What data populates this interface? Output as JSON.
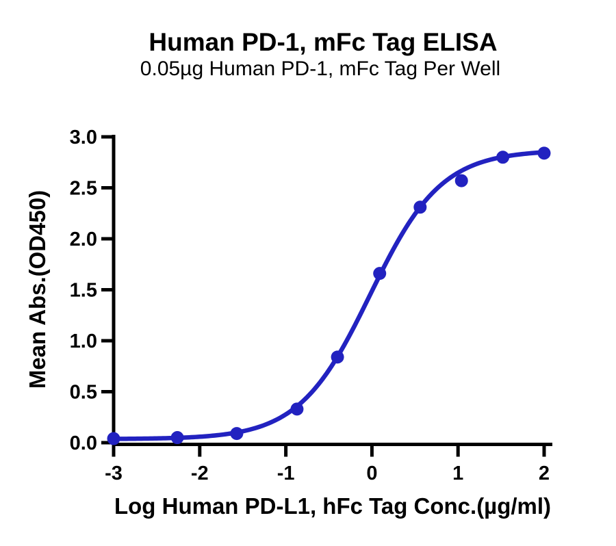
{
  "page": {
    "background_color": "#ffffff",
    "text_color": "#000000",
    "axis_color": "#000000"
  },
  "chart_data": {
    "type": "scatter",
    "title": "Human PD-1, mFc Tag ELISA",
    "subtitle": "0.05µg Human PD-1, mFc Tag Per Well",
    "xlabel": "Log Human PD-L1, hFc Tag Conc.(µg/ml)",
    "ylabel": "Mean Abs.(OD450)",
    "xlim": [
      -3,
      2
    ],
    "ylim": [
      0,
      3
    ],
    "grid": false,
    "legend": false,
    "x_ticks": {
      "values": [
        -3,
        -2,
        -1,
        0,
        1,
        2
      ],
      "labels": [
        "-3",
        "-2",
        "-1",
        "0",
        "1",
        "2"
      ]
    },
    "y_ticks": {
      "values": [
        0,
        0.5,
        1,
        1.5,
        2,
        2.5,
        3
      ],
      "labels": [
        "0.0",
        "0.5",
        "1.0",
        "1.5",
        "2.0",
        "2.5",
        "3.0"
      ]
    },
    "series": [
      {
        "color": "#2222C0",
        "marker": "circle",
        "points": {
          "x": [
            -3.0,
            -2.26,
            -1.57,
            -0.87,
            -0.4,
            0.09,
            0.56,
            1.04,
            1.52,
            2.0
          ],
          "y": [
            0.04,
            0.05,
            0.09,
            0.33,
            0.84,
            1.66,
            2.31,
            2.57,
            2.8,
            2.84
          ]
        },
        "fit_curve": {
          "model": "4PL",
          "bottom": 0.035,
          "top": 2.87,
          "logEC50": -0.02,
          "hill": 1.05,
          "x_range": [
            -3.0,
            2.0
          ]
        }
      }
    ]
  }
}
